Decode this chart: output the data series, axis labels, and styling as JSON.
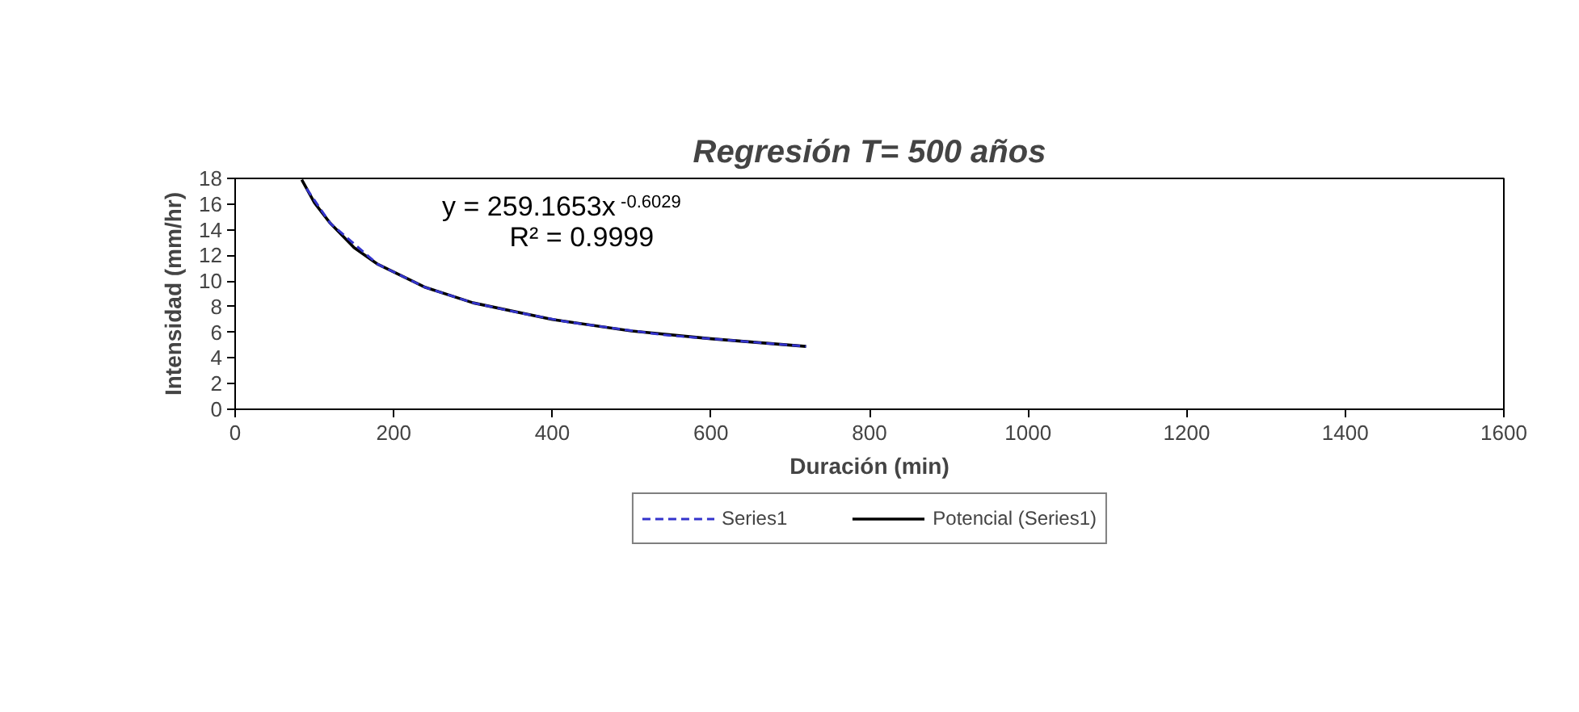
{
  "chart_data": {
    "type": "line",
    "title": "Regresión T= 500 años",
    "xlabel": "Duración (min)",
    "ylabel": "Intensidad (mm/hr)",
    "xlim": [
      0,
      1600
    ],
    "ylim": [
      0,
      18
    ],
    "xticks": [
      0,
      200,
      400,
      600,
      800,
      1000,
      1200,
      1400,
      1600
    ],
    "yticks": [
      0,
      2,
      4,
      6,
      8,
      10,
      12,
      14,
      16,
      18
    ],
    "grid": false,
    "legend": "bottom",
    "marker": "none",
    "annotations": [
      "y = 259.1653x$^{-0.6029}$",
      "R² = 0.9999"
    ],
    "series": [
      {
        "name": "Series1",
        "color": "#3333cc",
        "line_style": "dashed",
        "x": [
          90,
          120,
          180,
          240,
          300,
          360,
          420,
          480,
          540,
          600,
          660,
          720
        ],
        "values": [
          17.2,
          14.5,
          11.3,
          9.5,
          8.3,
          7.5,
          6.8,
          6.3,
          5.8,
          5.5,
          5.2,
          4.9
        ]
      },
      {
        "name": "Potencial (Series1)",
        "color": "#000000",
        "line_style": "solid",
        "x": [
          84,
          100,
          120,
          150,
          180,
          240,
          300,
          400,
          500,
          600,
          720
        ],
        "values": [
          17.9,
          16.1,
          14.5,
          12.6,
          11.3,
          9.5,
          8.3,
          7.0,
          6.1,
          5.5,
          4.9
        ]
      }
    ]
  }
}
